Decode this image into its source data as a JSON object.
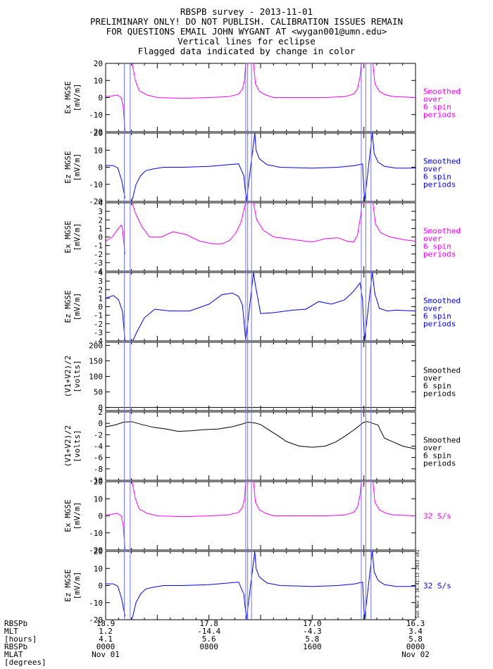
{
  "header": {
    "title": "RBSPB survey - 2013-11-01",
    "line2": "PRELIMINARY ONLY! DO NOT PUBLISH. CALIBRATION ISSUES REMAIN",
    "line3": "FOR QUESTIONS EMAIL JOHN WYGANT AT <wygan001@umn.edu>",
    "line4": "Vertical lines for eclipse",
    "line5": "Flagged data indicated by change in color"
  },
  "colors": {
    "magenta": "#ff00ff",
    "blue": "#0000ff",
    "black": "#000000",
    "eclipse": "#7070ff"
  },
  "eclipse_hours": [
    1.45,
    1.9,
    10.85,
    11.0,
    11.3,
    19.8,
    20.15,
    20.55
  ],
  "side_stamp": "Sun Nov 3 16:41:13 2013 v02",
  "chart_data": [
    {
      "type": "line",
      "id": "p1",
      "ylabel": "Ex MGSE",
      "yunit": "[mV/m]",
      "ylim": [
        -20,
        20
      ],
      "yticks": [
        -20,
        -10,
        0,
        10,
        20
      ],
      "color": "#ff00ff",
      "note": [
        "Smoothed",
        "over",
        "6 spin",
        "periods"
      ],
      "x": [
        0,
        0.5,
        0.9,
        1.2,
        1.35,
        1.5,
        1.6,
        2.05,
        2.3,
        2.6,
        3.2,
        4,
        6,
        8,
        9.5,
        10.3,
        10.6,
        10.75,
        10.85,
        11.45,
        11.6,
        11.9,
        12.4,
        13,
        15,
        17,
        18.5,
        19.2,
        19.5,
        19.7,
        19.8,
        20.7,
        20.85,
        21.2,
        21.7,
        22.3,
        24
      ],
      "y": [
        0.5,
        1,
        1.5,
        0,
        -5,
        -20,
        null,
        20,
        10,
        4,
        1.5,
        0,
        -0.5,
        0,
        0.5,
        2,
        5,
        10,
        20,
        20,
        8,
        3.5,
        1.5,
        0,
        0,
        0,
        0.5,
        2,
        5,
        12,
        20,
        20,
        8,
        3.5,
        1.5,
        0.5,
        0
      ]
    },
    {
      "type": "line",
      "id": "p2",
      "ylabel": "Ez MGSE",
      "yunit": "[mV/m]",
      "ylim": [
        -20,
        20
      ],
      "yticks": [
        -20,
        -10,
        0,
        10,
        20
      ],
      "color": "#0000ff",
      "note": [
        "Smoothed",
        "over",
        "6 spin",
        "periods"
      ],
      "x": [
        0,
        0.6,
        0.95,
        1.25,
        1.5,
        1.65,
        2.0,
        2.1,
        2.35,
        2.7,
        3.1,
        3.7,
        4.5,
        6,
        8,
        9.5,
        10.3,
        10.7,
        10.9,
        11.55,
        11.65,
        11.9,
        12.5,
        13.5,
        16,
        18,
        19.3,
        19.9,
        20.05,
        20.65,
        20.8,
        21.1,
        21.6,
        22.5,
        24
      ],
      "y": [
        1,
        1,
        -0.5,
        -8,
        -18,
        null,
        -20,
        -18,
        -10,
        -5,
        -2,
        -1,
        0,
        0,
        0.5,
        1.5,
        2,
        -5,
        -20,
        20,
        10,
        5,
        1.5,
        0,
        -0.5,
        0,
        1,
        2,
        -20,
        20,
        8,
        3,
        0.5,
        -0.5,
        -0.5
      ]
    },
    {
      "type": "line",
      "id": "p3",
      "ylabel": "Ex MGSE",
      "yunit": "[mV/m]",
      "ylim": [
        -4,
        4
      ],
      "yticks": [
        -4,
        -3,
        -2,
        -1,
        0,
        1,
        2,
        3,
        4
      ],
      "color": "#ff00ff",
      "note": [
        "Smoothed",
        "over",
        "6 spin",
        "periods"
      ],
      "x": [
        0,
        0.5,
        0.9,
        1.2,
        1.3,
        1.5,
        1.6,
        2.05,
        2.3,
        2.8,
        3.4,
        4.3,
        5.2,
        6.2,
        7.3,
        8.3,
        9.0,
        9.6,
        10.1,
        10.5,
        10.75,
        10.85,
        11.45,
        11.7,
        12.2,
        13,
        14,
        15,
        16,
        17,
        18,
        18.7,
        19.2,
        19.5,
        19.75,
        19.85,
        20.7,
        20.9,
        21.3,
        22,
        23,
        24
      ],
      "y": [
        -0.5,
        0,
        0.8,
        1.4,
        1,
        -2,
        null,
        4,
        2.8,
        1.2,
        0,
        0,
        0.6,
        0.3,
        -0.5,
        -0.8,
        -0.8,
        -0.4,
        0.5,
        1.8,
        3.5,
        4,
        4,
        2,
        0.8,
        0,
        -0.2,
        -0.4,
        -0.6,
        -0.2,
        -0.1,
        -0.5,
        -0.6,
        0.2,
        2.5,
        4,
        4,
        1.5,
        0.5,
        0,
        -0.3,
        -0.5
      ]
    },
    {
      "type": "line",
      "id": "p4",
      "ylabel": "Ez MGSE",
      "yunit": "[mV/m]",
      "ylim": [
        -4,
        4
      ],
      "yticks": [
        -4,
        -3,
        -2,
        -1,
        0,
        1,
        2,
        3,
        4
      ],
      "color": "#0000ff",
      "note": [
        "Smoothed",
        "over",
        "6 spin",
        "periods"
      ],
      "x": [
        0,
        0.6,
        1.0,
        1.3,
        1.5,
        1.65,
        2.1,
        2.4,
        3.0,
        3.8,
        5,
        6.5,
        8,
        9.0,
        9.8,
        10.3,
        10.6,
        10.85,
        11.45,
        11.6,
        12,
        13,
        14.5,
        15.5,
        16.5,
        17.5,
        18.5,
        19.2,
        19.7,
        19.9,
        20.05,
        20.65,
        20.85,
        21.2,
        21.8,
        22.5,
        24
      ],
      "y": [
        1,
        1.3,
        0.8,
        -0.5,
        -4,
        null,
        -4,
        -3,
        -1.3,
        -0.3,
        -0.5,
        -0.5,
        0.3,
        1.4,
        1.6,
        1.2,
        0.2,
        -4,
        4,
        2.5,
        -0.8,
        -0.7,
        -0.4,
        -0.3,
        0.6,
        0.3,
        0.8,
        1.8,
        2.8,
        0.8,
        -4,
        4,
        1.5,
        -0.2,
        -0.5,
        -0.4,
        -0.5
      ]
    },
    {
      "type": "line",
      "id": "p5",
      "ylabel": "(V1+V2)/2",
      "yunit": "[volts]",
      "ylim": [
        -10,
        210
      ],
      "yticks": [
        0,
        50,
        100,
        150,
        200
      ],
      "color": "#000000",
      "note": [
        "Smoothed",
        "over",
        "6 spin",
        "periods"
      ],
      "x": [
        0,
        24
      ],
      "y": [
        0,
        0
      ]
    },
    {
      "type": "line",
      "id": "p6",
      "ylabel": "(V1+V2)/2",
      "yunit": "[volts]",
      "ylim": [
        -10,
        2
      ],
      "yticks": [
        -10,
        -8,
        -6,
        -4,
        -2,
        0,
        2
      ],
      "color": "#000000",
      "note": [
        "Smoothed",
        "over",
        "6 spin",
        "periods"
      ],
      "x": [
        0,
        0.7,
        1.4,
        2,
        2.8,
        3.7,
        4.7,
        5.6,
        6.6,
        7.6,
        8.7,
        9.8,
        10.6,
        11.0,
        11.5,
        12,
        12.6,
        13.3,
        14,
        15,
        16,
        17,
        17.8,
        18.5,
        19.2,
        19.7,
        20.0,
        20.3,
        20.7,
        21.1,
        21.3,
        21.6,
        22.3,
        23,
        24
      ],
      "y": [
        -0.6,
        -0.3,
        0.2,
        0.3,
        -0.2,
        -0.7,
        -1,
        -1.4,
        -1.3,
        -1.1,
        -1,
        -0.6,
        -0.1,
        0.2,
        0.1,
        -0.2,
        -1.1,
        -2.1,
        -3.2,
        -4,
        -4.2,
        -4,
        -3.3,
        -2.3,
        -1.2,
        -0.3,
        0.2,
        0.3,
        0,
        -0.3,
        -1.3,
        -2.6,
        -3.3,
        -4,
        -4.5
      ]
    },
    {
      "type": "line",
      "id": "p7",
      "ylabel": "Ex MGSE",
      "yunit": "[mV/m]",
      "ylim": [
        -20,
        20
      ],
      "yticks": [
        -20,
        -10,
        0,
        10,
        20
      ],
      "color": "#ff00ff",
      "note": [
        "32 S/s"
      ],
      "x": [
        0,
        0.5,
        0.9,
        1.2,
        1.35,
        1.5,
        1.6,
        2.05,
        2.3,
        2.6,
        3.2,
        4,
        6,
        8,
        9.5,
        10.3,
        10.6,
        10.75,
        10.85,
        11.45,
        11.6,
        11.9,
        12.4,
        13,
        15,
        17,
        18.5,
        19.2,
        19.5,
        19.7,
        19.8,
        20.7,
        20.85,
        21.2,
        21.7,
        22.3,
        24
      ],
      "y": [
        0.5,
        1,
        1.5,
        0,
        -5,
        -20,
        null,
        20,
        10,
        4,
        1.5,
        0,
        -0.5,
        0,
        0.5,
        2,
        5,
        10,
        20,
        20,
        8,
        3.5,
        1.5,
        0,
        0,
        0,
        0.5,
        2,
        5,
        12,
        20,
        20,
        8,
        3.5,
        1.5,
        0.5,
        0
      ]
    },
    {
      "type": "line",
      "id": "p8",
      "ylabel": "Ez MGSE",
      "yunit": "[mV/m]",
      "ylim": [
        -20,
        20
      ],
      "yticks": [
        -20,
        -10,
        0,
        10,
        20
      ],
      "color": "#0000ff",
      "note": [
        "32 S/s"
      ],
      "x": [
        0,
        0.6,
        0.95,
        1.25,
        1.5,
        1.65,
        2.0,
        2.1,
        2.35,
        2.7,
        3.1,
        3.7,
        4.5,
        6,
        8,
        9.5,
        10.3,
        10.7,
        10.9,
        11.55,
        11.65,
        11.9,
        12.5,
        13.5,
        16,
        18,
        19.3,
        19.9,
        20.05,
        20.65,
        20.8,
        21.1,
        21.6,
        22.5,
        24
      ],
      "y": [
        1,
        1,
        -0.5,
        -8,
        -18,
        null,
        -20,
        -18,
        -10,
        -5,
        -2,
        -1,
        0,
        0,
        0.5,
        1.5,
        2,
        -5,
        -20,
        20,
        10,
        5,
        1.5,
        0,
        -0.5,
        0,
        1,
        2,
        -20,
        20,
        8,
        3,
        0.5,
        -0.5,
        -0.5
      ]
    }
  ],
  "time_axis": {
    "row_labels": [
      "RBSPb",
      "MLT",
      "[hours]",
      "RBSPb",
      "MLAT",
      "[degrees]"
    ],
    "columns": [
      {
        "hour": 0,
        "values": [
          "18.9",
          "1.2",
          "4.1",
          "0000",
          "Nov 01"
        ]
      },
      {
        "hour": 8,
        "values": [
          "17.8",
          "-14.4",
          "5.6",
          "0800",
          ""
        ]
      },
      {
        "hour": 16,
        "values": [
          "17.0",
          "-4.3",
          "5.8",
          "1600",
          ""
        ]
      },
      {
        "hour": 24,
        "values": [
          "16.3",
          "3.4",
          "5.8",
          "0000",
          "Nov 02"
        ]
      }
    ]
  }
}
